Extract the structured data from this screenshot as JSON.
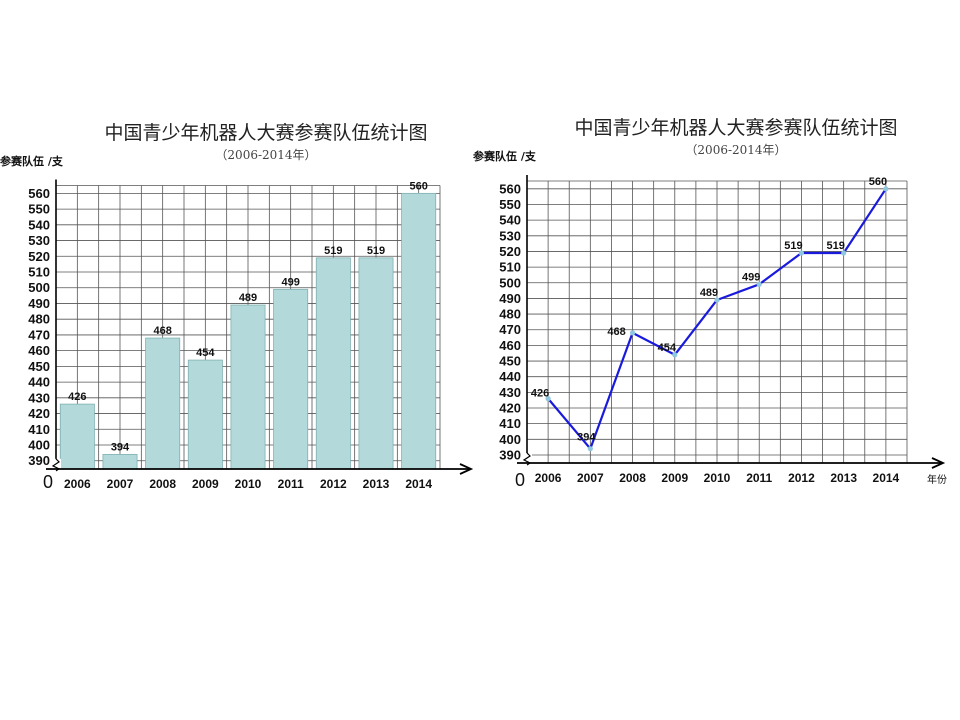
{
  "chart_data": [
    {
      "type": "bar",
      "title": "中国青少年机器人大赛参赛队伍统计图",
      "subtitle": "（2006-2014年）",
      "ylabel": "参赛队伍 /支",
      "xlabel": "",
      "zero_label": "0",
      "categories": [
        "2006",
        "2007",
        "2008",
        "2009",
        "2010",
        "2011",
        "2012",
        "2013",
        "2014"
      ],
      "values": [
        426,
        394,
        468,
        454,
        489,
        499,
        519,
        519,
        560
      ],
      "ylim": [
        385,
        565
      ],
      "yticks": [
        390,
        400,
        410,
        420,
        430,
        440,
        450,
        460,
        470,
        480,
        490,
        500,
        510,
        520,
        530,
        540,
        550,
        560
      ],
      "axis_break": true,
      "grid": true,
      "colors": {
        "bar": "#b4d9da",
        "bar_stroke": "#7fb1b3",
        "grid": "#555555",
        "axis": "#000000"
      }
    },
    {
      "type": "line",
      "title": "中国青少年机器人大赛参赛队伍统计图",
      "subtitle": "（2006-2014年）",
      "ylabel": "参赛队伍 /支",
      "xlabel": "年份",
      "zero_label": "0",
      "categories": [
        "2006",
        "2007",
        "2008",
        "2009",
        "2010",
        "2011",
        "2012",
        "2013",
        "2014"
      ],
      "values": [
        426,
        394,
        468,
        454,
        489,
        499,
        519,
        519,
        560
      ],
      "ylim": [
        385,
        565
      ],
      "yticks": [
        390,
        400,
        410,
        420,
        430,
        440,
        450,
        460,
        470,
        480,
        490,
        500,
        510,
        520,
        530,
        540,
        550,
        560
      ],
      "axis_break": true,
      "grid": true,
      "colors": {
        "line": "#1a1adc",
        "marker": "#8fc7e0",
        "grid": "#555555",
        "axis": "#000000"
      }
    }
  ]
}
